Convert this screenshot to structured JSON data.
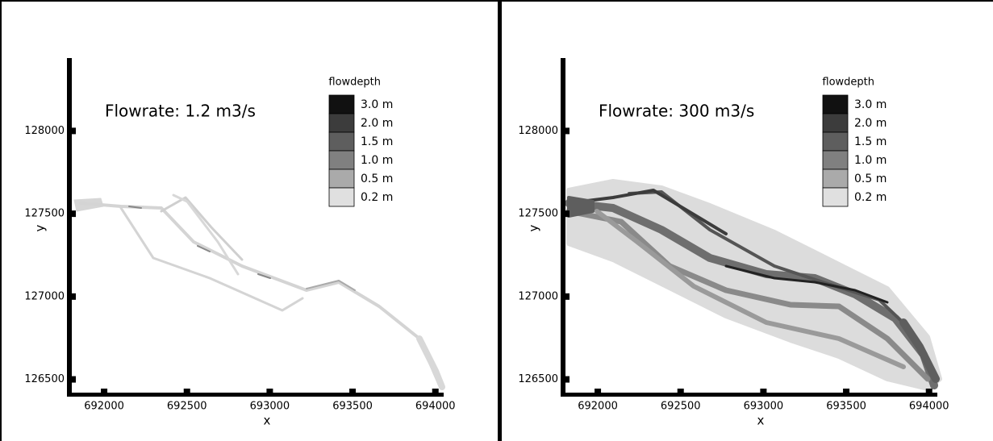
{
  "chart_data": [
    {
      "type": "contour",
      "title": "Flowrate:  1.2 m3/s",
      "xlabel": "x",
      "ylabel": "y",
      "xlim": [
        691800,
        694050
      ],
      "ylim": [
        126420,
        128440
      ],
      "xticks": [
        692000,
        692500,
        693000,
        693500,
        694000
      ],
      "yticks": [
        126500,
        127000,
        127500,
        128000
      ],
      "legend_title": "flowdepth",
      "legend": [
        {
          "name": "3.0  m",
          "color": "#111111"
        },
        {
          "name": "2.0  m",
          "color": "#3c3c3c"
        },
        {
          "name": "1.5  m",
          "color": "#5e5e5e"
        },
        {
          "name": "1.0  m",
          "color": "#808080"
        },
        {
          "name": "0.5  m",
          "color": "#aaaaaa"
        },
        {
          "name": "0.2  m",
          "color": "#e0e0e0"
        }
      ]
    },
    {
      "type": "contour",
      "title": "Flowrate:  300 m3/s",
      "xlabel": "x",
      "ylabel": "y",
      "xlim": [
        691800,
        694050
      ],
      "ylim": [
        126420,
        128440
      ],
      "xticks": [
        692000,
        692500,
        693000,
        693500,
        694000
      ],
      "yticks": [
        126500,
        127000,
        127500,
        128000
      ],
      "legend_title": "flowdepth",
      "legend": [
        {
          "name": "3.0  m",
          "color": "#111111"
        },
        {
          "name": "2.0  m",
          "color": "#3c3c3c"
        },
        {
          "name": "1.5  m",
          "color": "#5e5e5e"
        },
        {
          "name": "1.0  m",
          "color": "#808080"
        },
        {
          "name": "0.5  m",
          "color": "#aaaaaa"
        },
        {
          "name": "0.2  m",
          "color": "#e0e0e0"
        }
      ]
    }
  ]
}
